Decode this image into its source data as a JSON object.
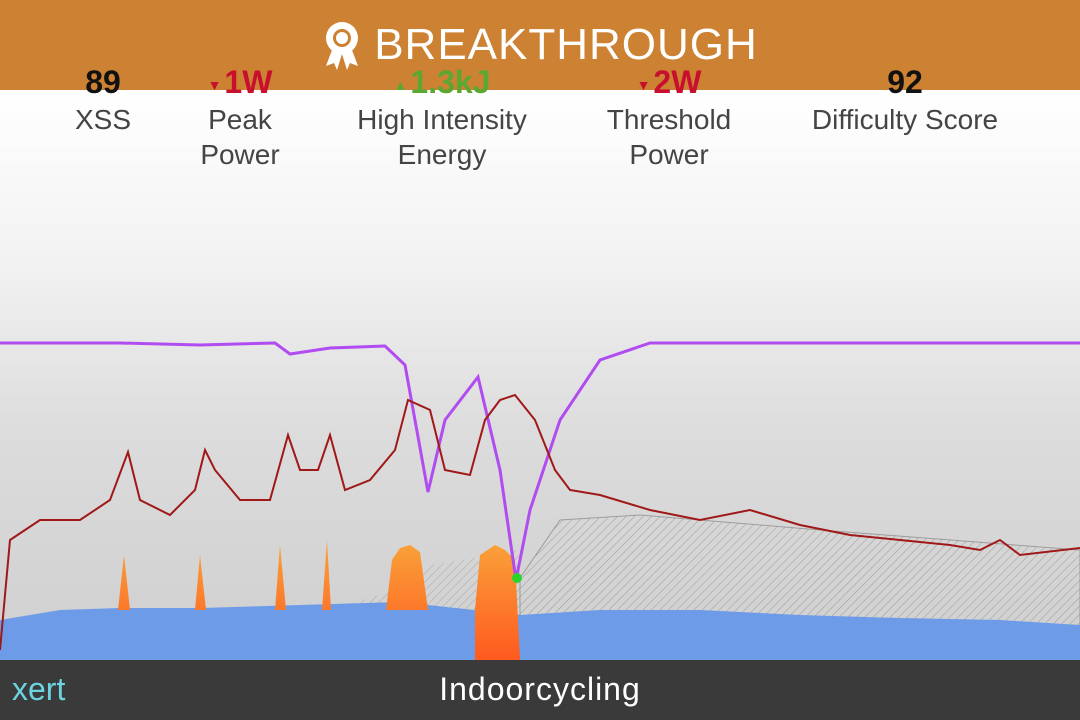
{
  "header": {
    "title": "BREAKTHROUGH"
  },
  "stats": [
    {
      "value": "89",
      "label": "XSS",
      "color": "#111111"
    },
    {
      "value": "1W",
      "label": "Peak Power",
      "trend": "down",
      "color": "#c8102e"
    },
    {
      "value": "1.3kJ",
      "label": "High Intensity Energy",
      "trend": "up",
      "color": "#5aa832"
    },
    {
      "value": "2W",
      "label": "Threshold Power",
      "trend": "down",
      "color": "#c8102e"
    },
    {
      "value": "92",
      "label": "Difficulty Score",
      "color": "#111111"
    }
  ],
  "footer": {
    "brand": "xert",
    "title": "Indoorcycling"
  }
}
